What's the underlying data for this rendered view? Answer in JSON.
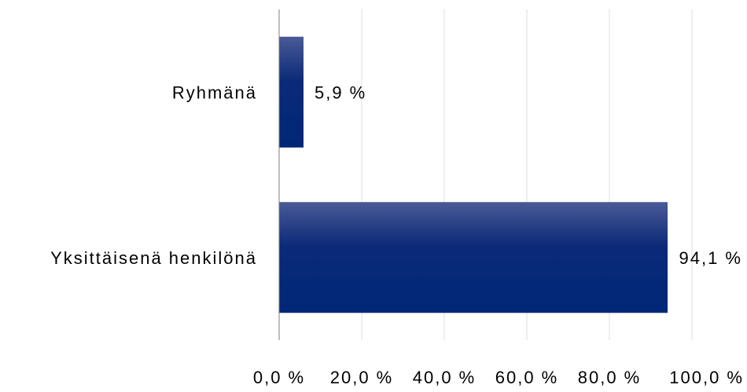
{
  "chart_data": {
    "type": "bar",
    "orientation": "horizontal",
    "categories": [
      "Ryhmänä",
      "Yksittäisenä henkilönä"
    ],
    "values": [
      5.9,
      94.1
    ],
    "data_labels": [
      "5,9 %",
      "94,1 %"
    ],
    "xlim": [
      0,
      100
    ],
    "x_ticks": [
      0,
      20,
      40,
      60,
      80,
      100
    ],
    "x_tick_labels": [
      "0,0 %",
      "20,0 %",
      "40,0 %",
      "60,0 %",
      "80,0 %",
      "100,0 %"
    ],
    "grid": true,
    "legend": "none",
    "colors": {
      "bar_top": "#4a5a96",
      "bar_mid": "#0a2a78",
      "bar_bottom": "#002777",
      "grid": "#dcdcea",
      "axis": "#7f7f7f"
    }
  }
}
